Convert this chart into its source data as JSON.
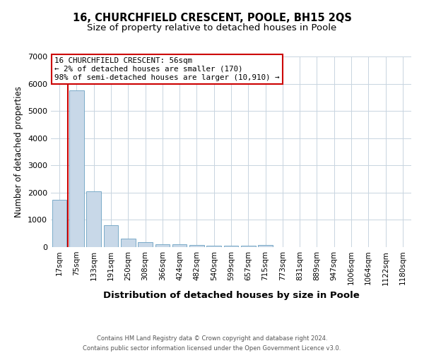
{
  "title": "16, CHURCHFIELD CRESCENT, POOLE, BH15 2QS",
  "subtitle": "Size of property relative to detached houses in Poole",
  "xlabel": "Distribution of detached houses by size in Poole",
  "ylabel": "Number of detached properties",
  "bar_labels": [
    "17sqm",
    "75sqm",
    "133sqm",
    "191sqm",
    "250sqm",
    "308sqm",
    "366sqm",
    "424sqm",
    "482sqm",
    "540sqm",
    "599sqm",
    "657sqm",
    "715sqm",
    "773sqm",
    "831sqm",
    "889sqm",
    "947sqm",
    "1006sqm",
    "1064sqm",
    "1122sqm",
    "1180sqm"
  ],
  "bar_values": [
    1750,
    5750,
    2050,
    800,
    320,
    175,
    110,
    95,
    70,
    55,
    60,
    45,
    90,
    0,
    0,
    0,
    0,
    0,
    0,
    0,
    0
  ],
  "bar_color": "#c8d8e8",
  "bar_edge_color": "#7aaac8",
  "property_line_x": 0.5,
  "property_line_color": "#cc0000",
  "ylim": [
    0,
    7000
  ],
  "annotation_text": "16 CHURCHFIELD CRESCENT: 56sqm\n← 2% of detached houses are smaller (170)\n98% of semi-detached houses are larger (10,910) →",
  "annotation_box_color": "#ffffff",
  "annotation_border_color": "#cc0000",
  "footer_line1": "Contains HM Land Registry data © Crown copyright and database right 2024.",
  "footer_line2": "Contains public sector information licensed under the Open Government Licence v3.0.",
  "title_fontsize": 10.5,
  "subtitle_fontsize": 9.5,
  "tick_fontsize": 7.5,
  "ylabel_fontsize": 8.5,
  "xlabel_fontsize": 9.5,
  "annotation_fontsize": 7.8,
  "footer_fontsize": 6.0,
  "bg_color": "#ffffff",
  "grid_color": "#c8d4e0"
}
